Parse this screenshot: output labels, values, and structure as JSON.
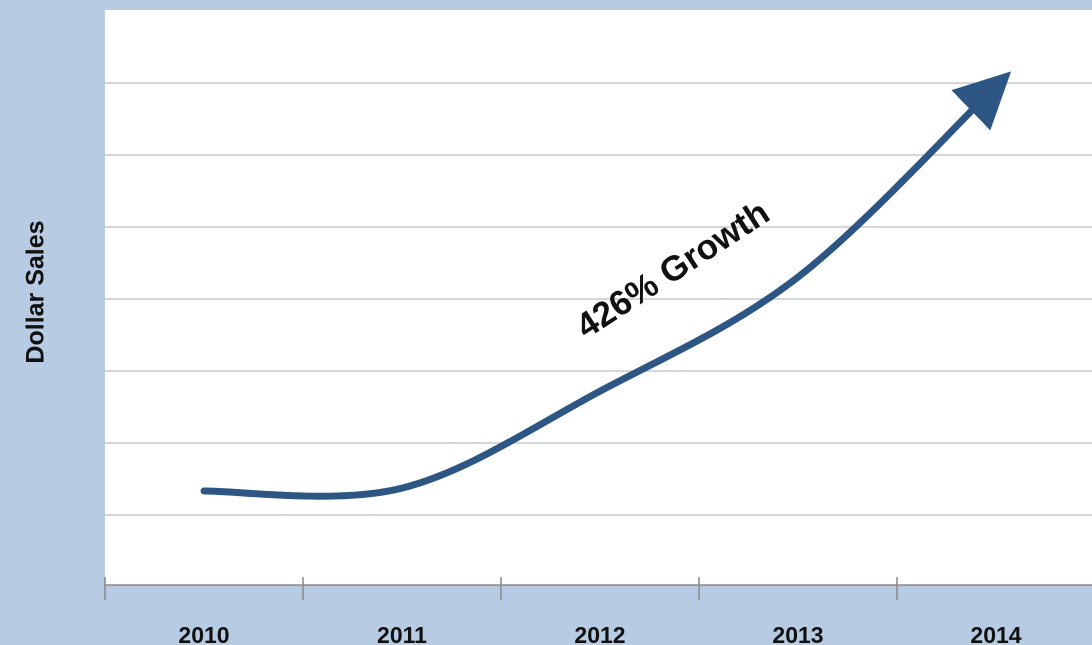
{
  "chart_data": {
    "type": "line",
    "categories": [
      "2010",
      "2011",
      "2012",
      "2013",
      "2014"
    ],
    "series": [
      {
        "values": [
          1,
          1.03,
          2.05,
          3.25,
          5.26
        ]
      }
    ],
    "ylabel": "Dollar Sales",
    "xlabel": "",
    "annotation": "426% Growth",
    "grid": true,
    "colors": {
      "line": "#2d5684",
      "background": "#b7cce3",
      "plot": "#ffffff",
      "grid": "#c8c8c8",
      "axis": "#888888"
    }
  }
}
